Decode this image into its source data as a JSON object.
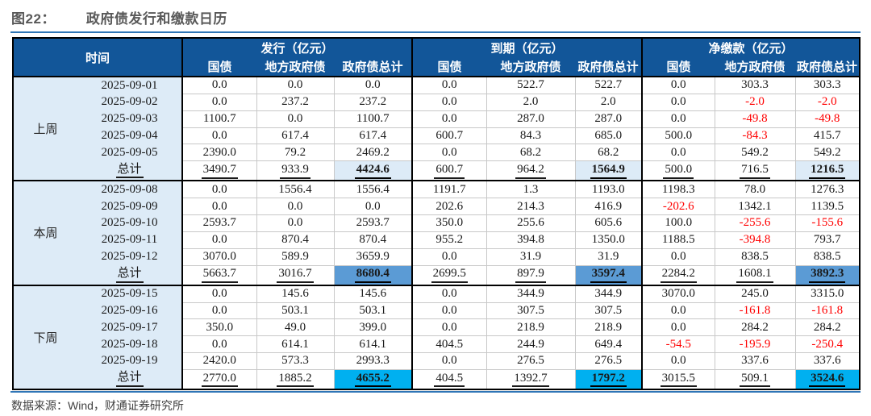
{
  "title": {
    "prefix": "图22：",
    "text": "政府债发行和缴款日历"
  },
  "footer": {
    "source": "数据来源：Wind，财通证券研究所"
  },
  "colors": {
    "header_bg": "#125699",
    "time_col_bg": "#DDEBF7",
    "negative_text": "#FF0000",
    "rule_blue": "#2E75B6",
    "hl_last_week": "#DDEBF7",
    "hl_this_week": "#5B9BD5",
    "hl_next_week": "#00B0F0"
  },
  "table": {
    "time_header": "时间",
    "group_headers": [
      "发行（亿元）",
      "到期（亿元）",
      "净缴款（亿元）"
    ],
    "sub_headers": [
      "国债",
      "地方政府债",
      "政府债总计"
    ],
    "total_label": "总计",
    "sections": [
      {
        "label": "上周",
        "highlight": "#DDEBF7",
        "rows": [
          {
            "date": "2025-09-01",
            "values": [
              "0.0",
              "0.0",
              "0.0",
              "0.0",
              "522.7",
              "522.7",
              "0.0",
              "303.3",
              "303.3"
            ]
          },
          {
            "date": "2025-09-02",
            "values": [
              "0.0",
              "237.2",
              "237.2",
              "0.0",
              "2.0",
              "2.0",
              "0.0",
              "-2.0",
              "-2.0"
            ]
          },
          {
            "date": "2025-09-03",
            "values": [
              "1100.7",
              "0.0",
              "1100.7",
              "0.0",
              "287.0",
              "287.0",
              "0.0",
              "-49.8",
              "-49.8"
            ]
          },
          {
            "date": "2025-09-04",
            "values": [
              "0.0",
              "617.4",
              "617.4",
              "600.7",
              "84.3",
              "685.0",
              "500.0",
              "-84.3",
              "415.7"
            ]
          },
          {
            "date": "2025-09-05",
            "values": [
              "2390.0",
              "79.2",
              "2469.2",
              "0.0",
              "68.2",
              "68.2",
              "0.0",
              "549.2",
              "549.2"
            ]
          }
        ],
        "totals": [
          "3490.7",
          "933.9",
          "4424.6",
          "600.7",
          "964.2",
          "1564.9",
          "500.0",
          "716.5",
          "1216.5"
        ]
      },
      {
        "label": "本周",
        "highlight": "#5B9BD5",
        "rows": [
          {
            "date": "2025-09-08",
            "values": [
              "0.0",
              "1556.4",
              "1556.4",
              "1191.7",
              "1.3",
              "1193.0",
              "1198.3",
              "78.0",
              "1276.3"
            ]
          },
          {
            "date": "2025-09-09",
            "values": [
              "0.0",
              "0.0",
              "0.0",
              "202.6",
              "214.3",
              "416.9",
              "-202.6",
              "1342.1",
              "1139.5"
            ]
          },
          {
            "date": "2025-09-10",
            "values": [
              "2593.7",
              "0.0",
              "2593.7",
              "350.0",
              "255.6",
              "605.6",
              "100.0",
              "-255.6",
              "-155.6"
            ]
          },
          {
            "date": "2025-09-11",
            "values": [
              "0.0",
              "870.4",
              "870.4",
              "955.2",
              "394.8",
              "1350.0",
              "1188.5",
              "-394.8",
              "793.7"
            ]
          },
          {
            "date": "2025-09-12",
            "values": [
              "3070.0",
              "589.9",
              "3659.9",
              "0.0",
              "31.9",
              "31.9",
              "0.0",
              "838.5",
              "838.5"
            ]
          }
        ],
        "totals": [
          "5663.7",
          "3016.7",
          "8680.4",
          "2699.5",
          "897.9",
          "3597.4",
          "2284.2",
          "1608.1",
          "3892.3"
        ]
      },
      {
        "label": "下周",
        "highlight": "#00B0F0",
        "rows": [
          {
            "date": "2025-09-15",
            "values": [
              "0.0",
              "145.6",
              "145.6",
              "0.0",
              "344.9",
              "344.9",
              "3070.0",
              "245.0",
              "3315.0"
            ]
          },
          {
            "date": "2025-09-16",
            "values": [
              "0.0",
              "503.1",
              "503.1",
              "0.0",
              "307.5",
              "307.5",
              "0.0",
              "-161.8",
              "-161.8"
            ]
          },
          {
            "date": "2025-09-17",
            "values": [
              "350.0",
              "49.0",
              "399.0",
              "0.0",
              "218.9",
              "218.9",
              "0.0",
              "284.2",
              "284.2"
            ]
          },
          {
            "date": "2025-09-18",
            "values": [
              "0.0",
              "614.1",
              "614.1",
              "404.5",
              "244.9",
              "649.4",
              "-54.5",
              "-195.9",
              "-250.4"
            ]
          },
          {
            "date": "2025-09-19",
            "values": [
              "2420.0",
              "573.3",
              "2993.3",
              "0.0",
              "276.5",
              "276.5",
              "0.0",
              "337.6",
              "337.6"
            ]
          }
        ],
        "totals": [
          "2770.0",
          "1885.2",
          "4655.2",
          "404.5",
          "1392.7",
          "1797.2",
          "3015.5",
          "509.1",
          "3524.6"
        ]
      }
    ]
  }
}
